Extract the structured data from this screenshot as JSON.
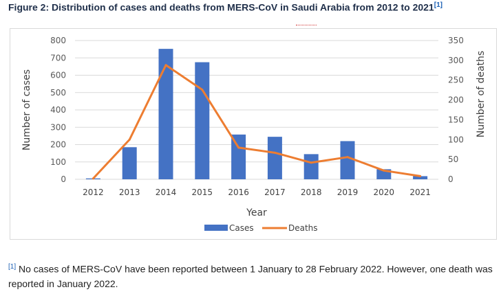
{
  "figure": {
    "title": "Figure 2: Distribution of cases and deaths from MERS-CoV in Saudi Arabia from 2012 to 2021",
    "ref_marker": "[1]"
  },
  "footnote": {
    "marker": "[1]",
    "text": "No cases of MERS-CoV have been reported between 1 January to 28 February 2022. However, one death was reported in January 2022."
  },
  "chart_data": {
    "type": "bar",
    "title": "",
    "categories": [
      "2012",
      "2013",
      "2014",
      "2015",
      "2016",
      "2017",
      "2018",
      "2019",
      "2020",
      "2021"
    ],
    "xlabel": "Year",
    "ylabel": "Number of cases",
    "y2label": "Number of deaths",
    "ylim": [
      0,
      800
    ],
    "y2lim": [
      0,
      350
    ],
    "yticks": [
      "0",
      "100",
      "200",
      "300",
      "400",
      "500",
      "600",
      "700",
      "800"
    ],
    "y2ticks": [
      "0",
      "50",
      "100",
      "150",
      "200",
      "250",
      "300",
      "350"
    ],
    "grid": true,
    "legend": "bottom",
    "series": [
      {
        "name": "Cases",
        "type": "bar",
        "axis": "left",
        "color": "#4472c4",
        "values": [
          5,
          185,
          752,
          675,
          258,
          245,
          145,
          220,
          58,
          18
        ]
      },
      {
        "name": "Deaths",
        "type": "line",
        "axis": "right",
        "color": "#ed7d31",
        "values": [
          2,
          100,
          288,
          226,
          80,
          67,
          42,
          56,
          22,
          8
        ]
      }
    ]
  }
}
